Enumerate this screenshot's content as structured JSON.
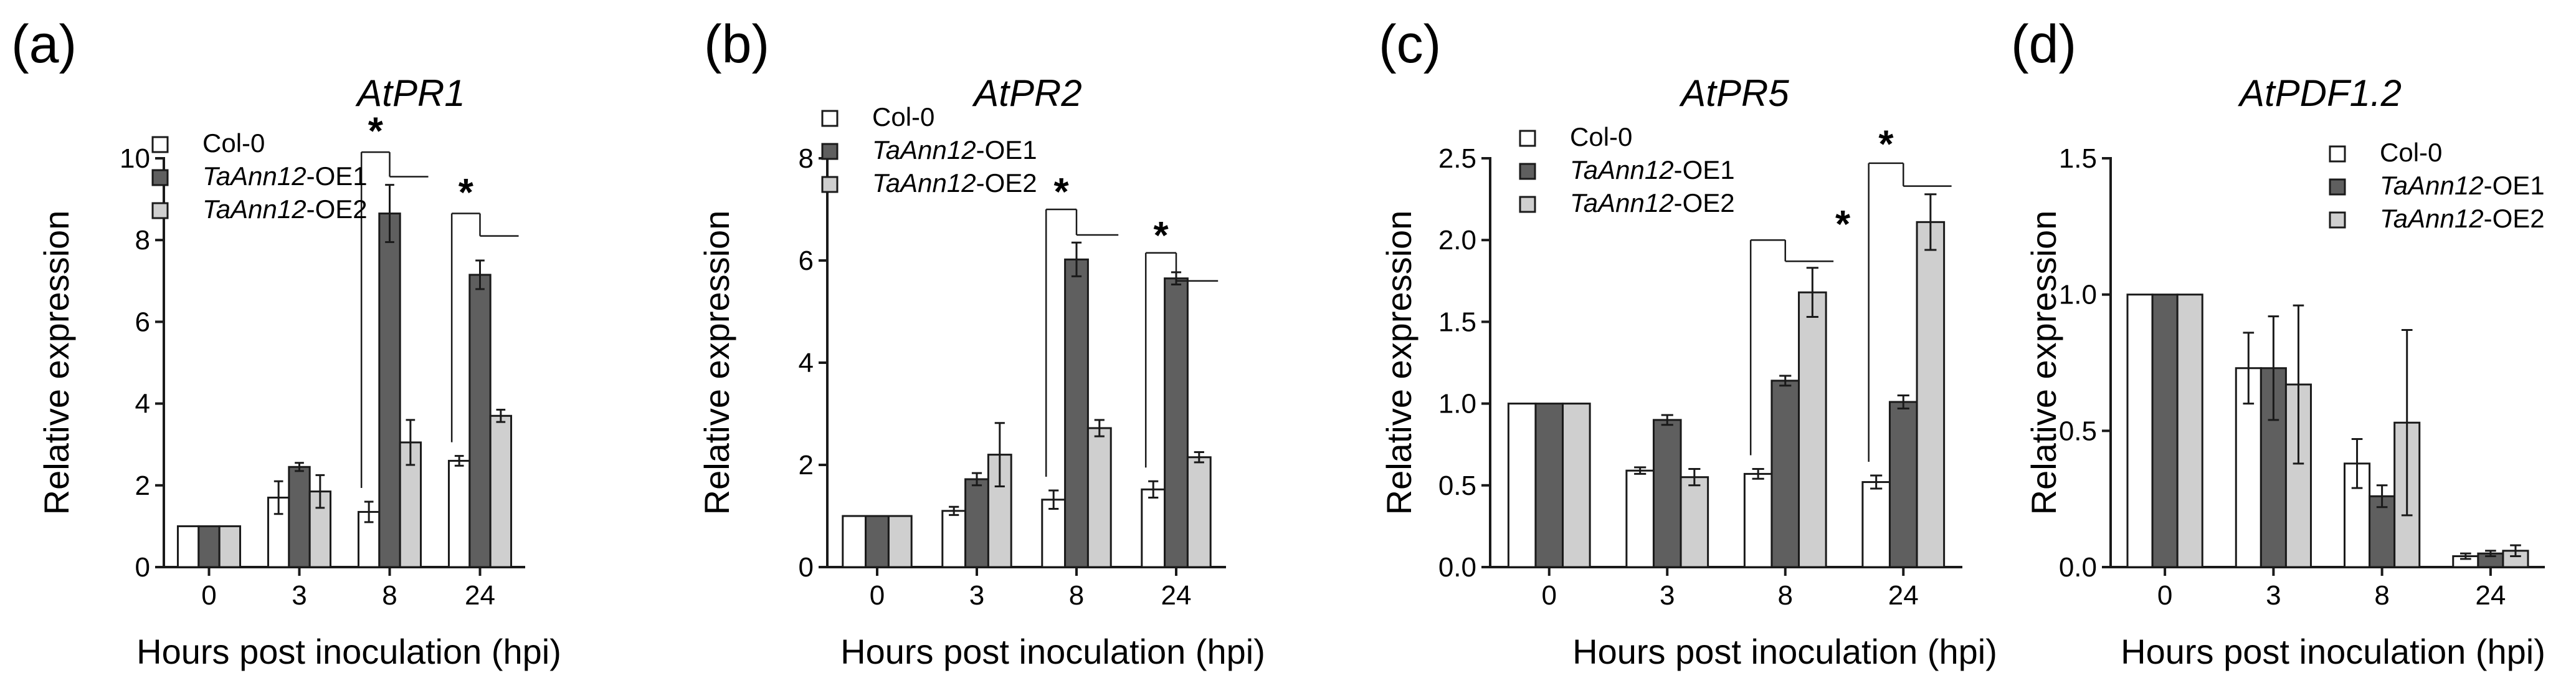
{
  "colors": {
    "Col-0": "#ffffff",
    "TaAnn12-OE1": "#5f5f5f",
    "TaAnn12-OE2": "#cfcfcf",
    "stroke": "#1a1a1a"
  },
  "chart_data": [
    {
      "type": "bar",
      "panel": "(a)",
      "title": "AtPR1",
      "xlabel": "Hours post inoculation (hpi)",
      "ylabel": "Relative expression",
      "ylim": [
        0,
        10
      ],
      "yticks": [
        "0",
        "2",
        "4",
        "6",
        "8",
        "10"
      ],
      "categories": [
        "0",
        "3",
        "8",
        "24"
      ],
      "legend_position": "top-left",
      "series": [
        {
          "name": "Col-0",
          "name_prefix": "",
          "name_suffix": "Col-0",
          "values": [
            1.0,
            1.7,
            1.35,
            2.6
          ],
          "errors": [
            0.0,
            0.4,
            0.25,
            0.12
          ]
        },
        {
          "name": "TaAnn12-OE1",
          "name_prefix": "TaAnn12",
          "name_suffix": "-OE1",
          "values": [
            1.0,
            2.45,
            8.65,
            7.15
          ],
          "errors": [
            0.0,
            0.1,
            0.7,
            0.35
          ]
        },
        {
          "name": "TaAnn12-OE2",
          "name_prefix": "TaAnn12",
          "name_suffix": "-OE2",
          "values": [
            1.0,
            1.85,
            3.05,
            3.7
          ],
          "errors": [
            0.0,
            0.4,
            0.55,
            0.15
          ]
        }
      ],
      "significance": [
        {
          "category_index": 2,
          "label": "*",
          "star_y": 10.8,
          "top_y": 10.15,
          "step_y": 9.55
        },
        {
          "category_index": 3,
          "label": "*",
          "star_y": 9.3,
          "top_y": 8.65,
          "step_y": 8.1
        }
      ]
    },
    {
      "type": "bar",
      "panel": "(b)",
      "title": "AtPR2",
      "xlabel": "Hours post inoculation (hpi)",
      "ylabel": "Relative expression",
      "ylim": [
        0,
        8
      ],
      "yticks": [
        "0",
        "2",
        "4",
        "6",
        "8"
      ],
      "categories": [
        "0",
        "3",
        "8",
        "24"
      ],
      "legend_position": "top-left",
      "series": [
        {
          "name": "Col-0",
          "name_prefix": "",
          "name_suffix": "Col-0",
          "values": [
            1.0,
            1.1,
            1.32,
            1.52
          ],
          "errors": [
            0.0,
            0.08,
            0.18,
            0.16
          ]
        },
        {
          "name": "TaAnn12-OE1",
          "name_prefix": "TaAnn12",
          "name_suffix": "-OE1",
          "values": [
            1.0,
            1.72,
            6.02,
            5.65
          ],
          "errors": [
            0.0,
            0.12,
            0.33,
            0.12
          ]
        },
        {
          "name": "TaAnn12-OE2",
          "name_prefix": "TaAnn12",
          "name_suffix": "-OE2",
          "values": [
            1.0,
            2.2,
            2.72,
            2.15
          ],
          "errors": [
            0.0,
            0.62,
            0.16,
            0.1
          ]
        }
      ],
      "significance": [
        {
          "category_index": 2,
          "label": "*",
          "star_y": 7.45,
          "top_y": 7.0,
          "step_y": 6.5
        },
        {
          "category_index": 3,
          "label": "*",
          "star_y": 6.6,
          "top_y": 6.15,
          "step_y": 5.6
        }
      ]
    },
    {
      "type": "bar",
      "panel": "(c)",
      "title": "AtPR5",
      "xlabel": "Hours post inoculation (hpi)",
      "ylabel": "Relative expression",
      "ylim": [
        0,
        2.5
      ],
      "yticks": [
        "0.0",
        "0.5",
        "1.0",
        "1.5",
        "2.0",
        "2.5"
      ],
      "categories": [
        "0",
        "3",
        "8",
        "24"
      ],
      "legend_position": "top-left",
      "series": [
        {
          "name": "Col-0",
          "name_prefix": "",
          "name_suffix": "Col-0",
          "values": [
            1.0,
            0.59,
            0.57,
            0.52
          ],
          "errors": [
            0.0,
            0.02,
            0.03,
            0.04
          ]
        },
        {
          "name": "TaAnn12-OE1",
          "name_prefix": "TaAnn12",
          "name_suffix": "-OE1",
          "values": [
            1.0,
            0.9,
            1.14,
            1.01
          ],
          "errors": [
            0.0,
            0.03,
            0.03,
            0.04
          ]
        },
        {
          "name": "TaAnn12-OE2",
          "name_prefix": "TaAnn12",
          "name_suffix": "-OE2",
          "values": [
            1.0,
            0.55,
            1.68,
            2.11
          ],
          "errors": [
            0.0,
            0.05,
            0.15,
            0.17
          ]
        }
      ],
      "significance": [
        {
          "category_index": 2,
          "label": "*",
          "star_y": 2.13,
          "top_y": 2.0,
          "step_y": 1.87,
          "star_left": true
        },
        {
          "category_index": 3,
          "label": "*",
          "star_y": 2.62,
          "top_y": 2.47,
          "step_y": 2.33
        }
      ]
    },
    {
      "type": "bar",
      "panel": "(d)",
      "title": "AtPDF1.2",
      "xlabel": "Hours post inoculation (hpi)",
      "ylabel": "Relative expression",
      "ylim": [
        0,
        1.5
      ],
      "yticks": [
        "0.0",
        "0.5",
        "1.0",
        "1.5"
      ],
      "categories": [
        "0",
        "3",
        "8",
        "24"
      ],
      "legend_position": "top-right",
      "series": [
        {
          "name": "Col-0",
          "name_prefix": "",
          "name_suffix": "Col-0",
          "values": [
            1.0,
            0.73,
            0.38,
            0.04
          ],
          "errors": [
            0.0,
            0.13,
            0.09,
            0.01
          ]
        },
        {
          "name": "TaAnn12-OE1",
          "name_prefix": "TaAnn12",
          "name_suffix": "-OE1",
          "values": [
            1.0,
            0.73,
            0.26,
            0.05
          ],
          "errors": [
            0.0,
            0.19,
            0.04,
            0.01
          ]
        },
        {
          "name": "TaAnn12-OE2",
          "name_prefix": "TaAnn12",
          "name_suffix": "-OE2",
          "values": [
            1.0,
            0.67,
            0.53,
            0.06
          ],
          "errors": [
            0.0,
            0.29,
            0.34,
            0.02
          ]
        }
      ],
      "significance": []
    }
  ]
}
